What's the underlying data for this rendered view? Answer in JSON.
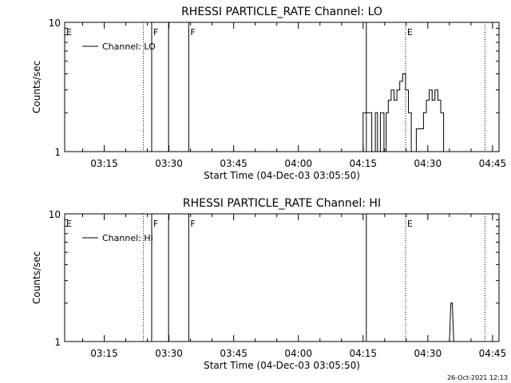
{
  "chart_data": [
    {
      "type": "line",
      "title": "RHESSI PARTICLE_RATE Channel: LO",
      "xlabel": "Start Time (04-Dec-03 03:05:50)",
      "ylabel": "Counts/sec",
      "y_scale": "log",
      "ylim": [
        1,
        10
      ],
      "xlim": [
        "03:05:50",
        "04:46:30"
      ],
      "x_ticks": [
        "03:15",
        "03:30",
        "03:45",
        "04:00",
        "04:15",
        "04:30",
        "04:45"
      ],
      "y_ticks": [
        "1",
        "10"
      ],
      "legend": {
        "placement": "top-left",
        "entries": [
          "Channel: LO"
        ]
      },
      "series": [
        {
          "name": "Channel: LO",
          "x": [
            "04:15:00",
            "04:15:00",
            "04:17:00",
            "04:17:00",
            "04:17:50",
            "04:17:50",
            "04:18:20",
            "04:18:20",
            "04:19:00",
            "04:19:00",
            "04:19:50",
            "04:19:50",
            "04:20:20",
            "04:20:20",
            "04:20:50",
            "04:20:50",
            "04:21:30",
            "04:21:30",
            "04:22:10",
            "04:22:10",
            "04:22:50",
            "04:22:50",
            "04:23:30",
            "04:23:30",
            "04:24:10",
            "04:24:10",
            "04:24:50",
            "04:24:50",
            "04:25:30",
            "04:25:30",
            "04:26:10",
            "04:26:10",
            "04:26:40",
            "04:26:40",
            "04:27:20",
            "04:27:20",
            "04:29:00",
            "04:29:00",
            "04:29:40",
            "04:29:40",
            "04:30:20",
            "04:30:20",
            "04:31:00",
            "04:31:00",
            "04:31:40",
            "04:31:40",
            "04:32:20",
            "04:32:20",
            "04:33:00",
            "04:33:00",
            "04:33:40",
            "04:33:40"
          ],
          "y": [
            1,
            2,
            2,
            1,
            1,
            2,
            2,
            1,
            1,
            2,
            2,
            1,
            1,
            2,
            2,
            2.5,
            2.5,
            3,
            3,
            2.5,
            2.5,
            3,
            3,
            3.5,
            3.5,
            4,
            4,
            3,
            3,
            2,
            2,
            1,
            1,
            1,
            1,
            1.5,
            1.5,
            2,
            2,
            2.5,
            2.5,
            3,
            3,
            2.5,
            2.5,
            3,
            3,
            2.5,
            2.5,
            2,
            2,
            1
          ]
        }
      ],
      "annotations": [
        {
          "label": "E",
          "time": "03:05:50",
          "style": "dotted"
        },
        {
          "label": "",
          "time": "03:24:05",
          "style": "dotted"
        },
        {
          "label": "F",
          "time": "03:26:00",
          "style": "solid"
        },
        {
          "label": "",
          "time": "03:29:55",
          "style": "solid"
        },
        {
          "label": "F",
          "time": "03:34:35",
          "style": "solid"
        },
        {
          "label": "",
          "time": "04:15:45",
          "style": "solid"
        },
        {
          "label": "E",
          "time": "04:24:50",
          "style": "dotted"
        },
        {
          "label": "",
          "time": "04:43:15",
          "style": "dotted"
        }
      ]
    },
    {
      "type": "line",
      "title": "RHESSI PARTICLE_RATE Channel: HI",
      "xlabel": "Start Time (04-Dec-03 03:05:50)",
      "ylabel": "Counts/sec",
      "y_scale": "log",
      "ylim": [
        1,
        10
      ],
      "xlim": [
        "03:05:50",
        "04:46:30"
      ],
      "x_ticks": [
        "03:15",
        "03:30",
        "03:45",
        "04:00",
        "04:15",
        "04:30",
        "04:45"
      ],
      "y_ticks": [
        "1",
        "10"
      ],
      "legend": {
        "placement": "top-left",
        "entries": [
          "Channel: HI"
        ]
      },
      "series": [
        {
          "name": "Channel: HI",
          "x": [
            "04:35:00",
            "04:35:20",
            "04:35:40",
            "04:36:00"
          ],
          "y": [
            1,
            2,
            2,
            1
          ]
        }
      ],
      "annotations": [
        {
          "label": "E",
          "time": "03:05:50",
          "style": "dotted"
        },
        {
          "label": "",
          "time": "03:24:05",
          "style": "dotted"
        },
        {
          "label": "F",
          "time": "03:26:00",
          "style": "solid"
        },
        {
          "label": "",
          "time": "03:29:55",
          "style": "solid"
        },
        {
          "label": "F",
          "time": "03:34:35",
          "style": "solid"
        },
        {
          "label": "",
          "time": "04:15:45",
          "style": "solid"
        },
        {
          "label": "E",
          "time": "04:24:50",
          "style": "dotted"
        },
        {
          "label": "",
          "time": "04:43:15",
          "style": "dotted"
        }
      ]
    }
  ],
  "footer_timestamp": "26-Oct-2021 12:13"
}
